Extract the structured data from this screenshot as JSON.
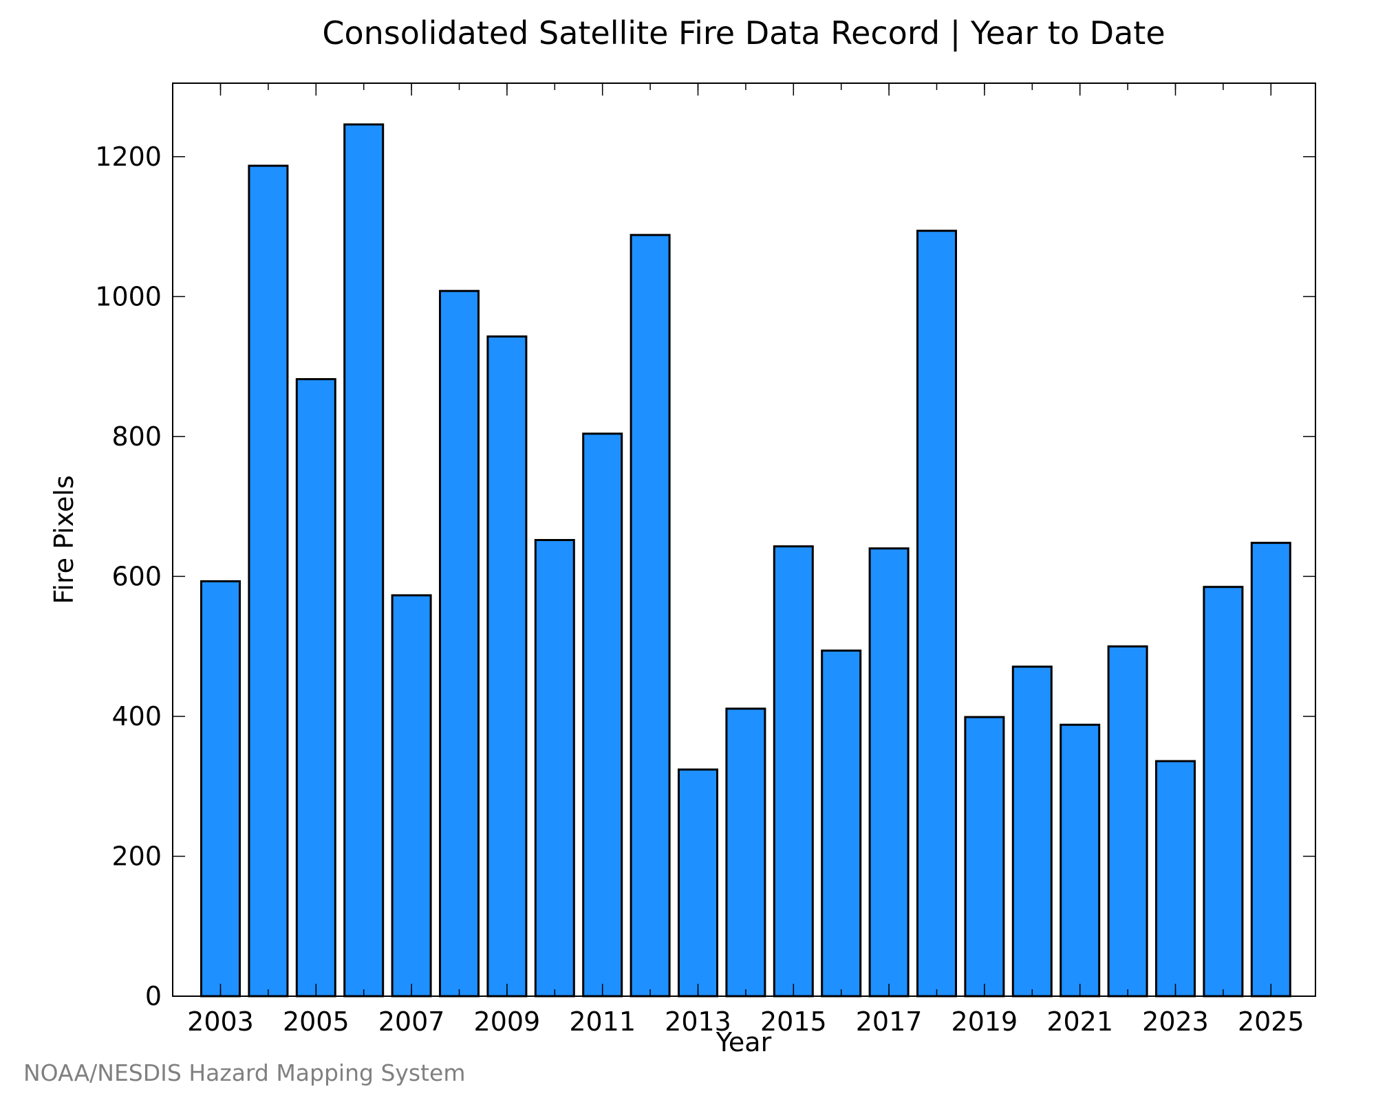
{
  "chart_data": {
    "type": "bar",
    "title": "Consolidated Satellite Fire Data Record | Year to Date",
    "xlabel": "Year",
    "ylabel": "Fire Pixels",
    "categories": [
      "2003",
      "2004",
      "2005",
      "2006",
      "2007",
      "2008",
      "2009",
      "2010",
      "2011",
      "2012",
      "2013",
      "2014",
      "2015",
      "2016",
      "2017",
      "2018",
      "2019",
      "2020",
      "2021",
      "2022",
      "2023",
      "2024",
      "2025"
    ],
    "x_tick_labels": [
      "2003",
      "2005",
      "2007",
      "2009",
      "2011",
      "2013",
      "2015",
      "2017",
      "2019",
      "2021",
      "2023",
      "2025"
    ],
    "values": [
      593,
      1187,
      882,
      1246,
      573,
      1008,
      943,
      652,
      804,
      1088,
      324,
      411,
      643,
      494,
      640,
      1094,
      399,
      471,
      388,
      500,
      336,
      585,
      648
    ],
    "ylim": [
      0,
      1305
    ],
    "y_ticks": [
      0,
      200,
      400,
      600,
      800,
      1000,
      1200
    ],
    "bar_color": "#1e90ff",
    "edge_color": "#000000",
    "grid": false
  },
  "footer": {
    "credit": "NOAA/NESDIS Hazard Mapping System"
  }
}
